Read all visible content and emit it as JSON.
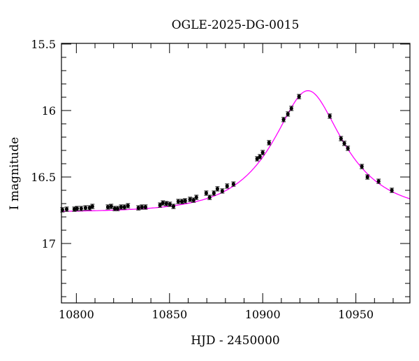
{
  "chart_data": {
    "type": "scatter",
    "title": "OGLE-2025-DG-0015",
    "xlabel": "HJD - 2450000",
    "ylabel": "I magnitude",
    "xlim": [
      10792,
      10979
    ],
    "ylim": [
      17.447,
      15.495
    ],
    "y_inverted": true,
    "grid": false,
    "x_ticks": [
      "10800",
      "10850",
      "10900",
      "10950"
    ],
    "y_ticks": [
      "15.5",
      "16",
      "16.5",
      "17"
    ],
    "x_tick_values": [
      10800,
      10850,
      10900,
      10950
    ],
    "y_tick_values": [
      15.5,
      16,
      16.5,
      17
    ],
    "colors": {
      "points": "#000000",
      "errorbars": "#000000",
      "model": "#ff00ff"
    },
    "model": {
      "type": "Paczynski",
      "t0": 10924.3,
      "u0": 0.465,
      "tE": 33.7,
      "baseline_mag": 16.765
    },
    "series": [
      {
        "x": [
          10792.5,
          10794.8,
          10798.9,
          10800.4,
          10802.6,
          10804.9,
          10807.1,
          10808.6,
          10816.9,
          10818.7,
          10820.6,
          10822.1,
          10824.0,
          10825.8,
          10827.7,
          10833.3,
          10835.2,
          10837.1,
          10844.9,
          10846.4,
          10848.3,
          10850.2,
          10852.1,
          10854.7,
          10856.6,
          10858.4,
          10861.0,
          10862.9,
          10864.4,
          10869.7,
          10871.5,
          10873.8,
          10875.7,
          10878.3,
          10880.9,
          10884.3,
          10897.0,
          10898.5,
          10900.0,
          10903.4,
          10911.2,
          10913.5,
          10915.4,
          10919.5,
          10936.0,
          10942.0,
          10943.8,
          10945.7,
          10953.2,
          10956.2,
          10962.2,
          10969.3
        ],
        "y": [
          16.747,
          16.742,
          16.742,
          16.737,
          16.737,
          16.732,
          16.732,
          16.721,
          16.726,
          16.721,
          16.737,
          16.737,
          16.726,
          16.726,
          16.716,
          16.732,
          16.726,
          16.726,
          16.711,
          16.695,
          16.7,
          16.705,
          16.721,
          16.684,
          16.684,
          16.679,
          16.668,
          16.674,
          16.653,
          16.621,
          16.653,
          16.621,
          16.589,
          16.605,
          16.568,
          16.553,
          16.363,
          16.347,
          16.316,
          16.242,
          16.068,
          16.026,
          15.984,
          15.895,
          16.042,
          16.211,
          16.247,
          16.284,
          16.421,
          16.5,
          16.532,
          16.6
        ],
        "yerr": 0.016
      }
    ]
  }
}
